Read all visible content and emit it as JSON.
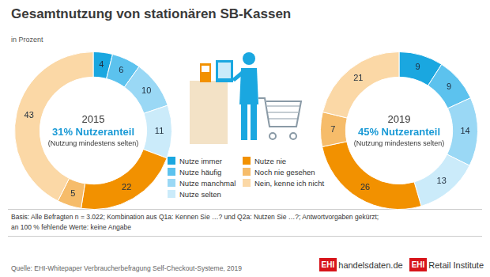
{
  "header": {
    "title": "Gesamtnutzung von stationären SB-Kassen",
    "subtitle": "in Prozent"
  },
  "chart_data": [
    {
      "type": "doughnut",
      "title": "2015",
      "annotations": [
        "31% Nutzeranteil",
        "(Nutzung mindestens selten)"
      ],
      "categories": [
        "Nutze immer",
        "Nutze häufig",
        "Nutze manchmal",
        "Nutze selten",
        "Nutze nie",
        "Noch nie gesehen",
        "Nein, kenne ich nicht"
      ],
      "values": [
        4,
        6,
        10,
        11,
        22,
        5,
        43
      ],
      "colors": [
        "#1aa7e0",
        "#5cc2ee",
        "#9ad8f5",
        "#cbebfa",
        "#f29100",
        "#f6bc6a",
        "#fbd8a6"
      ],
      "data_labels": true
    },
    {
      "type": "doughnut",
      "title": "2019",
      "annotations": [
        "45% Nutzeranteil",
        "(Nutzung mindestens selten)"
      ],
      "categories": [
        "Nutze immer",
        "Nutze häufig",
        "Nutze manchmal",
        "Nutze selten",
        "Nutze nie",
        "Noch nie gesehen",
        "Nein, kenne ich nicht"
      ],
      "values": [
        9,
        9,
        14,
        13,
        26,
        7,
        21
      ],
      "colors": [
        "#1aa7e0",
        "#5cc2ee",
        "#9ad8f5",
        "#cbebfa",
        "#f29100",
        "#f6bc6a",
        "#fbd8a6"
      ],
      "data_labels": true
    }
  ],
  "footer": {
    "note": [
      "Basis: Alle Befragten n = 3.022; Kombination aus Q1a: Kennen Sie …? und Q2a: Nutzen Sie …?; Antwortvorgaben gekürzt;",
      "an 100 % fehlende Werte: keine Angabe"
    ],
    "source": "Quelle: EHI-Whitepaper Verbraucherbefragung Self-Checkout-Systeme, 2019",
    "logos": [
      {
        "mark": "EHI",
        "text": "handelsdaten.de"
      },
      {
        "mark": "EHI",
        "text": "Retail Institute"
      }
    ]
  }
}
